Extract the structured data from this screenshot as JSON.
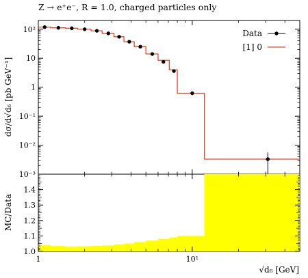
{
  "chart_data": {
    "type": "line",
    "title": "Z → e⁺e⁻, R = 1.0, charged particles only",
    "main": {
      "ylabel": "dσ/d√d₆ [pb GeV⁻¹]",
      "yscale": "log",
      "ylim": [
        0.001,
        200
      ],
      "yticks": [
        "10²",
        "10",
        "1",
        "10⁻¹",
        "10⁻²",
        "10⁻³"
      ]
    },
    "ratio": {
      "ylabel": "MC/Data",
      "ylim": [
        1.0,
        1.5
      ],
      "yticks": [
        "1.0",
        "1.1",
        "1.2",
        "1.3",
        "1.4"
      ],
      "band_color": "#ffff00",
      "band_low": [
        1.0,
        1.0,
        1.0,
        1.0,
        1.0,
        1.0,
        1.0,
        1.0,
        1.0,
        1.0,
        1.0,
        1.0,
        1.0,
        1.0
      ],
      "band_high": [
        1.04,
        1.035,
        1.03,
        1.032,
        1.035,
        1.038,
        1.045,
        1.05,
        1.06,
        1.07,
        1.08,
        1.09,
        1.1,
        1.5
      ]
    },
    "xlabel": "√d₆ [GeV]",
    "xscale": "log",
    "xlim": [
      1,
      50
    ],
    "xticks": [
      "1",
      "10¹"
    ],
    "bin_edges": [
      1,
      1.2,
      1.5,
      1.8,
      2.2,
      2.6,
      3.1,
      3.6,
      4.2,
      5.0,
      6.0,
      7.1,
      8.0,
      12.0,
      50
    ],
    "series": [
      {
        "name": "Data",
        "style": "points",
        "color": "#000000",
        "x": [
          1.1,
          1.35,
          1.65,
          2.0,
          2.4,
          2.85,
          3.35,
          3.9,
          4.6,
          5.5,
          6.5,
          7.6,
          10.0,
          31.0
        ],
        "y": [
          118,
          112,
          108,
          100,
          88,
          72,
          55,
          37,
          25,
          14,
          7.5,
          3.6,
          0.62,
          0.0033
        ],
        "yerr_rel": [
          0.03,
          0.03,
          0.03,
          0.03,
          0.03,
          0.03,
          0.04,
          0.05,
          0.06,
          0.08,
          0.1,
          0.12,
          0.15,
          0.7
        ]
      },
      {
        "name": "[1] 0",
        "style": "step",
        "color": "#e8452a",
        "y": [
          118,
          112,
          108,
          100,
          88,
          72,
          55,
          37,
          25,
          14,
          8.5,
          4.0,
          0.62,
          0.0033
        ]
      }
    ]
  }
}
